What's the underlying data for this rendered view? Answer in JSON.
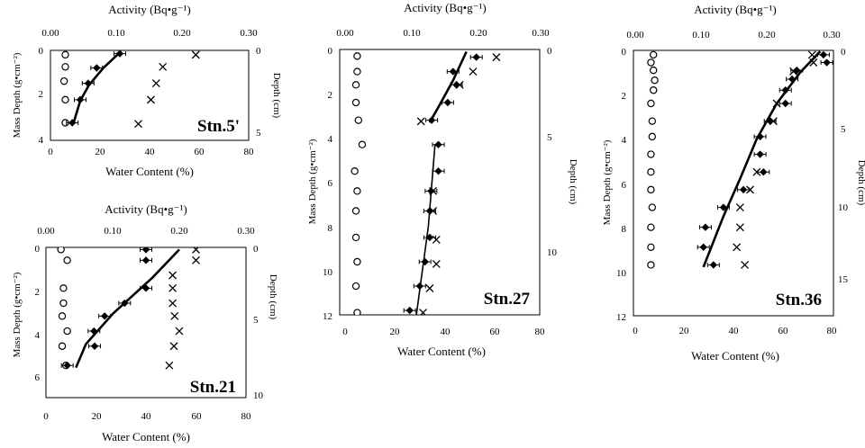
{
  "panels": [
    {
      "station": "Stn.5'",
      "top_label": "Activity (Bq•g⁻¹)",
      "bottom_label": "Water Content (%)",
      "left_label": "Mass Depth (g•cm⁻²)",
      "right_label": "Depth (cm)",
      "water_ticks": [
        "0",
        "20",
        "40",
        "60",
        "80"
      ],
      "activity_ticks": [
        "0.00",
        "0.10",
        "0.20",
        "0.30"
      ],
      "mass_ticks": [
        "0",
        "2",
        "4"
      ],
      "depth_ticks": [
        "0",
        "5"
      ],
      "water_lim": [
        0,
        80
      ],
      "activity_lim": [
        0,
        0.3
      ],
      "mass_lim": [
        0,
        4.1
      ],
      "chart_data": {
        "type": "scatter",
        "water_content": [
          [
            6,
            0.2
          ],
          [
            6,
            0.75
          ],
          [
            5.5,
            1.4
          ],
          [
            6,
            2.25
          ],
          [
            6,
            3.3
          ]
        ],
        "activity_diamond": [
          [
            0.105,
            0.15
          ],
          [
            0.07,
            0.8
          ],
          [
            0.057,
            1.5
          ],
          [
            0.045,
            2.25
          ],
          [
            0.033,
            3.3
          ]
        ],
        "activity_cross": [
          [
            0.22,
            0.2
          ],
          [
            0.17,
            0.75
          ],
          [
            0.16,
            1.5
          ],
          [
            0.152,
            2.25
          ],
          [
            0.133,
            3.35
          ]
        ],
        "fit_line": [
          [
            0.105,
            0.1
          ],
          [
            0.08,
            0.8
          ],
          [
            0.058,
            1.6
          ],
          [
            0.045,
            2.3
          ],
          [
            0.035,
            3.3
          ]
        ]
      }
    },
    {
      "station": "Stn.21",
      "top_label": "Activity (Bq•g⁻¹)",
      "bottom_label": "Water Content (%)",
      "left_label": "Mass Depth (g•cm⁻²)",
      "right_label": "Depth (cm)",
      "water_ticks": [
        "0",
        "20",
        "40",
        "60",
        "80"
      ],
      "activity_ticks": [
        "0.00",
        "0.10",
        "0.20",
        "0.30"
      ],
      "mass_ticks": [
        "0",
        "2",
        "4",
        "6"
      ],
      "depth_ticks": [
        "0",
        "5",
        "10"
      ],
      "water_lim": [
        0,
        80
      ],
      "activity_lim": [
        0,
        0.3
      ],
      "mass_lim": [
        0,
        7
      ],
      "chart_data": {
        "type": "scatter",
        "water_content": [
          [
            6,
            0.1
          ],
          [
            8.5,
            0.6
          ],
          [
            7,
            1.9
          ],
          [
            7,
            2.6
          ],
          [
            6.5,
            3.2
          ],
          [
            8.5,
            3.9
          ],
          [
            6.5,
            4.6
          ],
          [
            8,
            5.5
          ]
        ],
        "activity_diamond": [
          [
            0.15,
            0.1
          ],
          [
            0.15,
            0.6
          ],
          [
            0.15,
            1.9
          ],
          [
            0.118,
            2.6
          ],
          [
            0.088,
            3.2
          ],
          [
            0.072,
            3.9
          ],
          [
            0.073,
            4.6
          ],
          [
            0.032,
            5.5
          ]
        ],
        "activity_cross": [
          [
            0.225,
            0.1
          ],
          [
            0.225,
            0.6
          ],
          [
            0.19,
            1.3
          ],
          [
            0.19,
            1.9
          ],
          [
            0.19,
            2.6
          ],
          [
            0.193,
            3.2
          ],
          [
            0.2,
            3.9
          ],
          [
            0.192,
            4.6
          ],
          [
            0.185,
            5.5
          ]
        ],
        "fit_line": [
          [
            0.2,
            0.1
          ],
          [
            0.16,
            1.4
          ],
          [
            0.1,
            3.1
          ],
          [
            0.06,
            4.5
          ],
          [
            0.045,
            5.6
          ]
        ]
      }
    },
    {
      "station": "Stn.27",
      "top_label": "Activity (Bq•g⁻¹)",
      "bottom_label": "Water Content (%)",
      "left_label": "Mass Depth (g•cm⁻²)",
      "right_label": "Depth (cm)",
      "water_ticks": [
        "0",
        "20",
        "40",
        "60",
        "80"
      ],
      "activity_ticks": [
        "0.00",
        "0.10",
        "0.20",
        "0.30"
      ],
      "mass_ticks": [
        "0",
        "2",
        "4",
        "6",
        "8",
        "10",
        "12"
      ],
      "depth_ticks": [
        "0",
        "5",
        "10"
      ],
      "water_lim": [
        0,
        80
      ],
      "activity_lim": [
        0,
        0.3
      ],
      "mass_lim": [
        0,
        12
      ],
      "chart_data": {
        "type": "scatter",
        "water_content": [
          [
            7,
            0.3
          ],
          [
            7,
            1.0
          ],
          [
            6.5,
            1.6
          ],
          [
            6.5,
            2.4
          ],
          [
            7.5,
            3.2
          ],
          [
            9,
            4.3
          ],
          [
            6,
            5.5
          ],
          [
            7,
            6.4
          ],
          [
            6.5,
            7.3
          ],
          [
            6.5,
            8.5
          ],
          [
            7,
            9.6
          ],
          [
            6.5,
            10.7
          ],
          [
            7,
            11.9
          ]
        ],
        "activity_diamond": [
          [
            0.205,
            0.35
          ],
          [
            0.17,
            1.0
          ],
          [
            0.175,
            1.6
          ],
          [
            0.162,
            2.4
          ],
          [
            0.138,
            3.2
          ],
          [
            0.148,
            4.3
          ],
          [
            0.148,
            5.5
          ],
          [
            0.137,
            6.4
          ],
          [
            0.135,
            7.3
          ],
          [
            0.135,
            8.5
          ],
          [
            0.128,
            9.6
          ],
          [
            0.12,
            10.7
          ],
          [
            0.105,
            11.8
          ]
        ],
        "activity_cross": [
          [
            0.235,
            0.35
          ],
          [
            0.2,
            1.0
          ],
          [
            0.18,
            1.6
          ],
          [
            0.122,
            3.25
          ],
          [
            0.14,
            6.4
          ],
          [
            0.14,
            7.3
          ],
          [
            0.145,
            8.6
          ],
          [
            0.145,
            9.7
          ],
          [
            0.135,
            10.8
          ],
          [
            0.125,
            11.9
          ]
        ],
        "fit_line_upper": [
          [
            0.19,
            0.1
          ],
          [
            0.17,
            1.4
          ],
          [
            0.15,
            2.5
          ],
          [
            0.135,
            3.3
          ]
        ],
        "fit_line_lower": [
          [
            0.143,
            4.3
          ],
          [
            0.133,
            8
          ],
          [
            0.115,
            12
          ]
        ]
      }
    },
    {
      "station": "Stn.36",
      "top_label": "Activity (Bq•g⁻¹)",
      "bottom_label": "Water Content (%)",
      "left_label": "Mass Depth (g•cm⁻²)",
      "right_label": "Depth (cm)",
      "water_ticks": [
        "0",
        "20",
        "40",
        "60",
        "80"
      ],
      "activity_ticks": [
        "0.00",
        "0.10",
        "0.20",
        "0.30"
      ],
      "mass_ticks": [
        "0",
        "2",
        "4",
        "6",
        "8",
        "10",
        "12"
      ],
      "depth_ticks": [
        "0",
        "5",
        "10",
        "15"
      ],
      "water_lim": [
        0,
        80
      ],
      "activity_lim": [
        0,
        0.3
      ],
      "mass_lim": [
        0,
        12
      ],
      "chart_data": {
        "type": "scatter",
        "water_content": [
          [
            8,
            0.2
          ],
          [
            7,
            0.55
          ],
          [
            8,
            0.9
          ],
          [
            8.5,
            1.35
          ],
          [
            8,
            1.8
          ],
          [
            7,
            2.4
          ],
          [
            7.5,
            3.2
          ],
          [
            7.5,
            3.9
          ],
          [
            7,
            4.7
          ],
          [
            7,
            5.5
          ],
          [
            7,
            6.3
          ],
          [
            7.5,
            7.1
          ],
          [
            7,
            8.0
          ],
          [
            7,
            8.9
          ],
          [
            7,
            9.7
          ]
        ],
        "activity_diamond": [
          [
            0.285,
            0.2
          ],
          [
            0.29,
            0.55
          ],
          [
            0.245,
            0.9
          ],
          [
            0.238,
            1.3
          ],
          [
            0.228,
            1.8
          ],
          [
            0.228,
            2.4
          ],
          [
            0.205,
            3.2
          ],
          [
            0.19,
            3.9
          ],
          [
            0.19,
            4.7
          ],
          [
            0.195,
            5.5
          ],
          [
            0.165,
            6.3
          ],
          [
            0.135,
            7.1
          ],
          [
            0.108,
            8.0
          ],
          [
            0.105,
            8.9
          ],
          [
            0.12,
            9.7
          ]
        ],
        "activity_cross": [
          [
            0.268,
            0.2
          ],
          [
            0.27,
            0.55
          ],
          [
            0.24,
            0.95
          ],
          [
            0.215,
            2.4
          ],
          [
            0.21,
            3.2
          ],
          [
            0.185,
            5.5
          ],
          [
            0.175,
            6.3
          ],
          [
            0.16,
            7.1
          ],
          [
            0.16,
            8.0
          ],
          [
            0.155,
            8.9
          ],
          [
            0.167,
            9.7
          ]
        ],
        "fit_line": [
          [
            0.28,
            0.05
          ],
          [
            0.25,
            1.0
          ],
          [
            0.215,
            2.4
          ],
          [
            0.185,
            4.0
          ],
          [
            0.16,
            5.8
          ],
          [
            0.135,
            7.5
          ],
          [
            0.105,
            9.8
          ]
        ]
      }
    }
  ]
}
